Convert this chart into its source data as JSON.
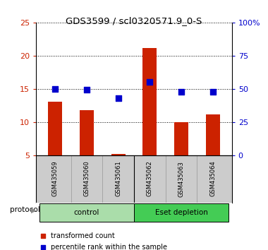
{
  "title": "GDS3599 / scl0320571.9_0-S",
  "samples": [
    "GSM435059",
    "GSM435060",
    "GSM435061",
    "GSM435062",
    "GSM435063",
    "GSM435064"
  ],
  "red_values": [
    13.0,
    11.8,
    5.2,
    21.2,
    10.0,
    11.1
  ],
  "blue_values": [
    15.0,
    14.9,
    13.6,
    16.0,
    14.5,
    14.5
  ],
  "left_ylim": [
    5,
    25
  ],
  "left_yticks": [
    5,
    10,
    15,
    20,
    25
  ],
  "right_ylim": [
    0,
    100
  ],
  "right_yticks": [
    0,
    25,
    50,
    75,
    100
  ],
  "right_yticklabels": [
    "0",
    "25",
    "50",
    "75",
    "100%"
  ],
  "bar_color": "#cc2200",
  "dot_color": "#0000cc",
  "bar_width": 0.45,
  "control_color": "#aaddaa",
  "eset_color": "#44cc55",
  "protocol_label": "protocol",
  "legend_items": [
    {
      "label": "transformed count",
      "color": "#cc2200"
    },
    {
      "label": "percentile rank within the sample",
      "color": "#0000cc"
    }
  ],
  "title_fontsize": 9.5,
  "tick_label_color_left": "#cc2200",
  "tick_label_color_right": "#0000cc",
  "background_color": "#ffffff",
  "xlabel_area_bg": "#cccccc",
  "n_control": 3,
  "n_eset": 3
}
